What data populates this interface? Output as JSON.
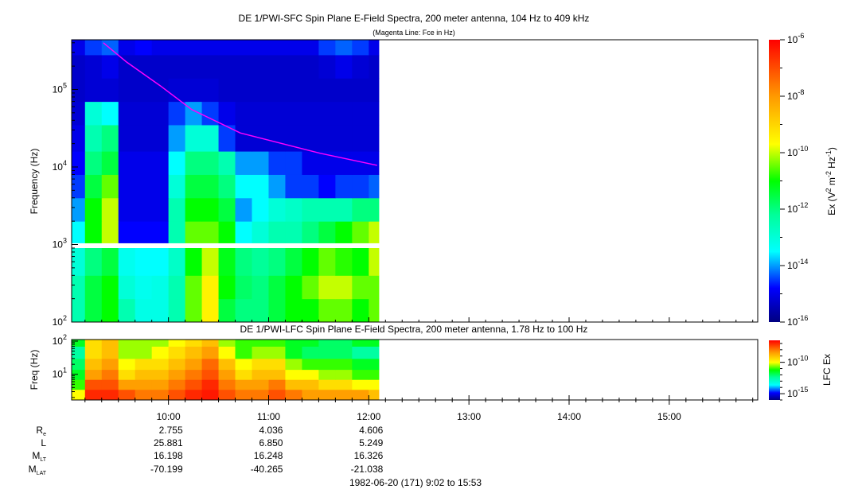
{
  "chart_data": [
    {
      "type": "heatmap",
      "title": "DE 1/PWI-SFC  Spin Plane E-Field Spectra, 200 meter antenna, 104 Hz to 409 kHz",
      "subtitle": "(Magenta Line: Fce in Hz)",
      "ylabel": "Frequency (Hz)",
      "yscale": "log",
      "ylim_hz": [
        100,
        409000
      ],
      "y_ticks": [
        {
          "base": "10",
          "exp": "2",
          "value": 100
        },
        {
          "base": "10",
          "exp": "3",
          "value": 1000
        },
        {
          "base": "10",
          "exp": "4",
          "value": 10000
        },
        {
          "base": "10",
          "exp": "5",
          "value": 100000
        }
      ],
      "time_edges": [
        "9:02",
        "9:10",
        "9:20",
        "9:30",
        "9:40",
        "9:50",
        "10:00",
        "10:10",
        "10:20",
        "10:30",
        "10:40",
        "10:50",
        "11:00",
        "11:10",
        "11:20",
        "11:30",
        "11:40",
        "11:50",
        "12:00",
        "12:06"
      ],
      "freq_band_edges_hz": [
        [
          100,
          200,
          400,
          900
        ],
        [
          1050,
          2000,
          4000,
          8000,
          16000,
          35000,
          70000,
          140000,
          280000,
          409000
        ]
      ],
      "values_log10": [
        [
          -12.5,
          -11.5,
          -11,
          -12.5,
          -13.2,
          -13.2,
          -12.5,
          -10.5,
          -9.5,
          -11.5,
          -12,
          -12,
          -11.5,
          -11,
          -11,
          -10.5,
          -10.5,
          -11,
          -10.5
        ],
        [
          -12.5,
          -11.5,
          -11,
          -13,
          -13.3,
          -13.2,
          -12.5,
          -10.5,
          -9.5,
          -11,
          -11.8,
          -12,
          -11.5,
          -11,
          -10.5,
          -10,
          -10,
          -10.5,
          -10.5
        ],
        [
          -13,
          -12,
          -11.5,
          -13.3,
          -13.5,
          -13.5,
          -12.8,
          -11,
          -10,
          -11.2,
          -12,
          -12.2,
          -12,
          -11.5,
          -11,
          -10.5,
          -10.8,
          -11,
          -10
        ],
        [
          -13.5,
          -11,
          -10,
          -14.8,
          -14.8,
          -14.8,
          -12.5,
          -10.5,
          -10.5,
          -11,
          -13.5,
          -13,
          -12.5,
          -12.5,
          -12,
          -11.5,
          -11,
          -10.5,
          -10
        ],
        [
          -14,
          -11,
          -10,
          -15,
          -15,
          -15,
          -12.5,
          -11,
          -11,
          -11.5,
          -14,
          -13.5,
          -13,
          -12.8,
          -12.5,
          -12.5,
          -12.5,
          -12,
          -12
        ],
        [
          -14.5,
          -11.5,
          -10.5,
          -15,
          -15,
          -15,
          -13,
          -11.5,
          -11.5,
          -12,
          -13.5,
          -13.5,
          -14,
          -14.5,
          -14.5,
          -14.8,
          -14.5,
          -14.5,
          -14.3
        ],
        [
          -14.8,
          -12,
          -11.5,
          -15,
          -15,
          -15,
          -13.5,
          -12,
          -12,
          -12.5,
          -14,
          -14,
          -14.5,
          -14.5,
          -15,
          -15,
          -15,
          -15,
          -15
        ],
        [
          -15,
          -12.5,
          -12,
          -15.2,
          -15.2,
          -15.2,
          -14,
          -13,
          -13,
          -14.5,
          -15.2,
          -15.2,
          -15.2,
          -15.2,
          -15.2,
          -15.2,
          -15.2,
          -15.2,
          -15.2
        ],
        [
          -15.2,
          -13,
          -13.5,
          -15.2,
          -15.2,
          -15.2,
          -14.5,
          -14,
          -14.5,
          -15,
          -15.2,
          -15.2,
          -15.2,
          -15.2,
          -15.2,
          -15.2,
          -15.2,
          -15.2,
          -15.2
        ],
        [
          -15.3,
          -15.2,
          -15.2,
          -15.3,
          -15.3,
          -15.3,
          -15.2,
          -15.2,
          -15.2,
          -15.3,
          -15.3,
          -15.3,
          -15.3,
          -15.3,
          -15.3,
          -15.3,
          -15.3,
          -15.3,
          -15.3
        ],
        [
          -15.3,
          -15.2,
          -15,
          -15.3,
          -15.3,
          -15.3,
          -15.3,
          -15.3,
          -15.3,
          -15.3,
          -15.3,
          -15.3,
          -15.3,
          -15.3,
          -15.3,
          -15.2,
          -15,
          -15.2,
          -15.3
        ],
        [
          -15,
          -14.5,
          -14.3,
          -15,
          -14.8,
          -15,
          -15,
          -15,
          -15,
          -15,
          -15,
          -15,
          -15,
          -15,
          -15,
          -14.5,
          -14.3,
          -14.5,
          -15
        ]
      ],
      "fce_line": {
        "color": "#ff00ff",
        "time": [
          "9:21",
          "9:35",
          "9:55",
          "10:14",
          "10:43",
          "11:31",
          "12:05"
        ],
        "hz": [
          400000,
          225000,
          112000,
          55000,
          27500,
          15000,
          10500
        ]
      },
      "colorbar": {
        "label_main": "Ex (V",
        "label_sup1": "2",
        "label_mid": " m",
        "label_sup2": "-2",
        "label_hz": " Hz",
        "label_sup3": "-1",
        "label_end": ")",
        "range_log10": [
          -16,
          -6
        ],
        "ticks": [
          {
            "base": "10",
            "exp": "-6",
            "value": -6
          },
          {
            "base": "10",
            "exp": "-8",
            "value": -8
          },
          {
            "base": "10",
            "exp": "-10",
            "value": -10
          },
          {
            "base": "10",
            "exp": "-12",
            "value": -12
          },
          {
            "base": "10",
            "exp": "-14",
            "value": -14
          },
          {
            "base": "10",
            "exp": "-16",
            "value": -16
          }
        ]
      }
    },
    {
      "type": "heatmap",
      "title": "DE 1/PWI-LFC  Spin Plane E-Field Spectra, 200 meter antenna, 1.78 Hz to 100 Hz",
      "ylabel": "Freq (Hz)",
      "yscale": "log",
      "ylim_hz": [
        1.78,
        100
      ],
      "y_ticks": [
        {
          "base": "10",
          "exp": "1",
          "value": 10
        },
        {
          "base": "10",
          "exp": "2",
          "value": 100
        }
      ],
      "time_edges": [
        "9:02",
        "9:10",
        "9:20",
        "9:30",
        "9:40",
        "9:50",
        "10:00",
        "10:10",
        "10:20",
        "10:30",
        "10:40",
        "10:50",
        "11:00",
        "11:10",
        "11:20",
        "11:30",
        "11:40",
        "11:50",
        "12:00",
        "12:06"
      ],
      "freq_edges_hz": [
        1.78,
        3.5,
        7,
        14,
        30,
        70,
        100
      ],
      "values_log10": [
        [
          -10,
          -7,
          -7,
          -7.5,
          -8,
          -8,
          -7.5,
          -7,
          -6.8,
          -7.5,
          -8,
          -8,
          -7.5,
          -8,
          -8.5,
          -8.5,
          -8.5,
          -8.5,
          -9
        ],
        [
          -11,
          -7.5,
          -7.5,
          -8.5,
          -8.5,
          -8.5,
          -8,
          -7.5,
          -7,
          -8,
          -8.5,
          -8.5,
          -8,
          -9,
          -9,
          -9.5,
          -9.5,
          -10,
          -10
        ],
        [
          -11.5,
          -8.5,
          -8,
          -9.5,
          -9,
          -9,
          -8.5,
          -8,
          -7.5,
          -8.5,
          -9.5,
          -9,
          -9,
          -10,
          -10,
          -10.5,
          -10.5,
          -11,
          -11
        ],
        [
          -12,
          -9,
          -8.5,
          -10,
          -9.5,
          -9.5,
          -9,
          -8.5,
          -7.8,
          -9,
          -10,
          -9.5,
          -9.5,
          -10.5,
          -11,
          -11,
          -11,
          -11.5,
          -11.5
        ],
        [
          -12.5,
          -9.5,
          -9,
          -10.5,
          -10.5,
          -10,
          -9.5,
          -9,
          -8.5,
          -10,
          -11,
          -10.5,
          -10.5,
          -11.5,
          -12,
          -12,
          -12,
          -12.5,
          -12.5
        ],
        [
          -11.5,
          -9.5,
          -9,
          -10.5,
          -10.5,
          -10.5,
          -10,
          -9.5,
          -9,
          -10.5,
          -11,
          -11,
          -11,
          -11.5,
          -11.5,
          -12,
          -12,
          -11.5,
          -11.5
        ]
      ],
      "colorbar": {
        "label": "LFC Ex",
        "range_log10": [
          -16,
          -6.5
        ],
        "ticks": [
          {
            "base": "10",
            "exp": "-10",
            "value": -10
          },
          {
            "base": "10",
            "exp": "-15",
            "value": -15
          }
        ]
      }
    }
  ],
  "time_axis": {
    "start": "9:02",
    "end": "15:53",
    "ticks": [
      "10:00",
      "11:00",
      "12:00",
      "13:00",
      "14:00",
      "15:00"
    ]
  },
  "orbit": {
    "labels": [
      {
        "main": "R",
        "sub": "e"
      },
      {
        "main": "L",
        "sub": ""
      },
      {
        "main": "M",
        "sub": "LT"
      },
      {
        "main": "M",
        "sub": "LAT"
      }
    ],
    "columns": [
      {
        "time": "10:00",
        "values": [
          "2.755",
          "25.881",
          "16.198",
          "-70.199"
        ]
      },
      {
        "time": "11:00",
        "values": [
          "4.036",
          "6.850",
          "16.248",
          "-40.265"
        ]
      },
      {
        "time": "12:00",
        "values": [
          "4.606",
          "5.249",
          "16.326",
          "-21.038"
        ]
      }
    ]
  },
  "date_line": "1982-06-20 (171) 9:02 to 15:53"
}
